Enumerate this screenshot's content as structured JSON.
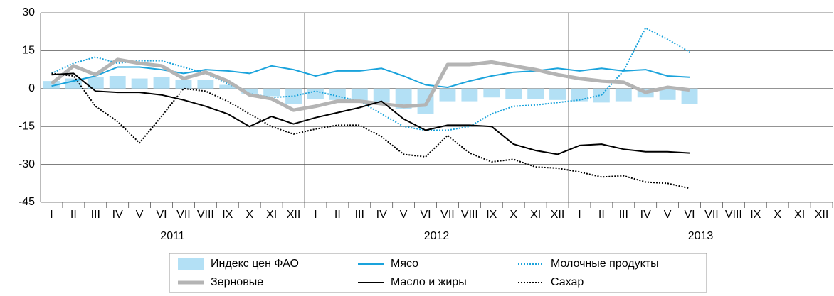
{
  "chart_data": {
    "type": "bar_line",
    "categories": [
      "I",
      "II",
      "III",
      "IV",
      "V",
      "VI",
      "VII",
      "VIII",
      "IX",
      "X",
      "XI",
      "XII",
      "I",
      "II",
      "III",
      "IV",
      "V",
      "VI",
      "VII",
      "VIII",
      "IX",
      "X",
      "XI",
      "XII",
      "I",
      "II",
      "III",
      "IV",
      "V",
      "VI",
      "VII",
      "VIII",
      "IX",
      "X",
      "XI",
      "XII"
    ],
    "year_labels": [
      "2011",
      "2012",
      "2013"
    ],
    "ylim": [
      -45,
      30
    ],
    "yticks": [
      -45,
      -30,
      -15,
      0,
      15,
      30
    ],
    "grid": true,
    "series": [
      {
        "name": "Индекс цен ФАО",
        "kind": "bar",
        "color": "#b3e0f5",
        "values": [
          3,
          4,
          4.5,
          5,
          4,
          4.5,
          3.5,
          3.5,
          1.5,
          -2,
          -3,
          -6,
          -4,
          -4.5,
          -5,
          -5.5,
          -8,
          -10,
          -5,
          -5,
          -3.5,
          -4,
          -4,
          -4.5,
          -5,
          -5.5,
          -5,
          -3.5,
          -4.5,
          -6,
          null,
          null,
          null,
          null,
          null,
          null
        ]
      },
      {
        "name": "Мясо",
        "kind": "line",
        "color": "#1aa3dc",
        "dash": "solid",
        "width": 2,
        "values": [
          1,
          3,
          5,
          8.5,
          8.5,
          7.5,
          6,
          7.5,
          7,
          6,
          9,
          7.5,
          5,
          7,
          7,
          8,
          5,
          1.5,
          0.5,
          3,
          5,
          6.5,
          7,
          8,
          7,
          8,
          7,
          7.5,
          5,
          4.5,
          null,
          null,
          null,
          null,
          null,
          null
        ]
      },
      {
        "name": "Молочные продукты",
        "kind": "line",
        "color": "#1aa3dc",
        "dash": "dotted",
        "width": 2,
        "values": [
          6,
          10,
          12.5,
          10,
          11,
          11,
          8.5,
          6,
          2,
          -2,
          -3.5,
          -3,
          -1,
          -3,
          -5,
          -10,
          -15,
          -16.5,
          -16.5,
          -15,
          -10,
          -7,
          -6.5,
          -5.5,
          -4.5,
          -2.5,
          7,
          24,
          19.5,
          14.5,
          null,
          null,
          null,
          null,
          null,
          null
        ]
      },
      {
        "name": "Зерновые",
        "kind": "line",
        "color": "#b4b4b4",
        "dash": "solid",
        "width": 5,
        "values": [
          2,
          9,
          5.5,
          11.5,
          10,
          9,
          4,
          6.5,
          3,
          -2.5,
          -4,
          -8.5,
          -7,
          -5,
          -5,
          -6,
          -7,
          -6.5,
          9.5,
          9.5,
          10.5,
          9,
          7.5,
          5.5,
          4,
          3,
          2.5,
          -1.5,
          0.5,
          -0.5,
          null,
          null,
          null,
          null,
          null,
          null
        ]
      },
      {
        "name": "Масло и жиры",
        "kind": "line",
        "color": "#000000",
        "dash": "solid",
        "width": 2,
        "values": [
          5.5,
          6,
          -1,
          -1.5,
          -1.5,
          -2.5,
          -4.5,
          -7,
          -10,
          -15,
          -11,
          -14,
          -11.5,
          -9.5,
          -7.5,
          -5,
          -12,
          -16.5,
          -14.5,
          -14.5,
          -15,
          -22,
          -24.5,
          -26,
          -22.5,
          -22,
          -24,
          -25,
          -25,
          -25.5,
          null,
          null,
          null,
          null,
          null,
          null
        ]
      },
      {
        "name": "Сахар",
        "kind": "line",
        "color": "#000000",
        "dash": "dotted",
        "width": 2,
        "values": [
          6,
          5,
          -7,
          -13,
          -21.5,
          -11,
          0,
          -1,
          -5,
          -10,
          -15,
          -18,
          -16,
          -14.5,
          -14.5,
          -19,
          -26,
          -27,
          -18.5,
          -25.5,
          -29,
          -28,
          -31,
          -31.5,
          -33,
          -35,
          -34.5,
          -37,
          -37.5,
          -39.5,
          null,
          null,
          null,
          null,
          null,
          null
        ]
      }
    ]
  }
}
